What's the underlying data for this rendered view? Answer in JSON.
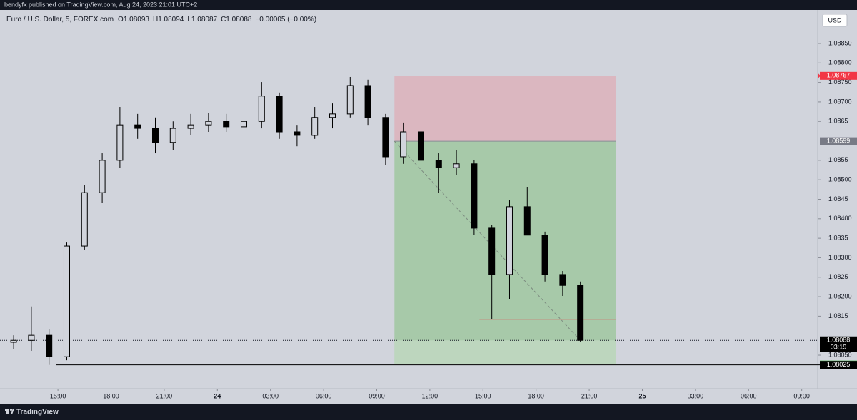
{
  "header": "bendyfx published on TradingView.com, Aug 24, 2023 21:01 UTC+2",
  "footer": "TradingView",
  "chart_data": {
    "type": "candlestick",
    "symbol": "Euro / U.S. Dollar, 5, FOREX.com",
    "ohlc_legend": [
      "O1.08093",
      "H1.08094",
      "L1.08087",
      "C1.08088",
      "−0.00005 (−0.00%)"
    ],
    "currency": "USD",
    "x": [
      12.5,
      13.5,
      14.5,
      15.5,
      16.5,
      17.5,
      18.5,
      19.5,
      20.5,
      21.5,
      22.5,
      23.5,
      24.5,
      25.5,
      26.5,
      27.5,
      28.5,
      29.5,
      30.5,
      31.5,
      32.5,
      33.5,
      34.5,
      35.5,
      36.5,
      37.5,
      38.5,
      39.5,
      40.5,
      41.5,
      42.5,
      43.5,
      44.5
    ],
    "open": [
      1.08083,
      1.08088,
      1.08101,
      1.08046,
      1.0833,
      1.08467,
      1.0855,
      1.08641,
      1.08632,
      1.08596,
      1.08632,
      1.08641,
      1.0865,
      1.08636,
      1.0865,
      1.08715,
      1.08623,
      1.08614,
      1.0866,
      1.08669,
      1.08742,
      1.0866,
      1.08559,
      1.08623,
      1.0855,
      1.08531,
      1.08541,
      1.08376,
      1.08257,
      1.08431,
      1.08358,
      1.08257,
      1.08229
    ],
    "high": [
      1.08101,
      1.08175,
      1.08116,
      1.08339,
      1.08486,
      1.08568,
      1.08687,
      1.08669,
      1.0866,
      1.0865,
      1.08669,
      1.08672,
      1.08669,
      1.08669,
      1.08751,
      1.08724,
      1.08641,
      1.08687,
      1.08696,
      1.08764,
      1.08757,
      1.08669,
      1.08647,
      1.08632,
      1.08568,
      1.08577,
      1.0855,
      1.08385,
      1.08449,
      1.08482,
      1.08367,
      1.08266,
      1.08239
    ],
    "low": [
      1.08065,
      1.08061,
      1.08025,
      1.08037,
      1.08321,
      1.0844,
      1.08531,
      1.08605,
      1.08568,
      1.08577,
      1.08614,
      1.08623,
      1.08623,
      1.08623,
      1.08632,
      1.08605,
      1.08586,
      1.08605,
      1.08632,
      1.0866,
      1.08641,
      1.08537,
      1.08541,
      1.08541,
      1.08467,
      1.08513,
      1.08358,
      1.08142,
      1.08193,
      1.08367,
      1.08239,
      1.08202,
      1.08083
    ],
    "close": [
      1.08088,
      1.08101,
      1.08046,
      1.0833,
      1.08467,
      1.0855,
      1.08641,
      1.08632,
      1.08596,
      1.08632,
      1.08641,
      1.0865,
      1.08636,
      1.0865,
      1.08715,
      1.08623,
      1.08614,
      1.0866,
      1.08669,
      1.08742,
      1.0866,
      1.08559,
      1.08623,
      1.0855,
      1.08531,
      1.08541,
      1.08376,
      1.08257,
      1.08431,
      1.08358,
      1.08257,
      1.08229,
      1.08088
    ],
    "up_color": "#d1d4dc",
    "down_color": "#000000",
    "last_price": 1.08088,
    "countdown": "03:19",
    "position": {
      "entry": 1.08599,
      "stop": 1.08767,
      "target": 1.08026,
      "start": 34,
      "end": 46.5,
      "stop_color": "#dbb7c0",
      "target_color": "#a7c9a9"
    },
    "low_line": {
      "value": 1.08142,
      "start": 38.8
    },
    "support_ray": {
      "value": 1.08025,
      "start": 14.9
    },
    "xlim": [
      11.73,
      57.9
    ],
    "ylim": [
      1.07964,
      1.08936
    ],
    "xticks": [
      {
        "value": 15,
        "label": "15:00"
      },
      {
        "value": 18,
        "label": "18:00"
      },
      {
        "value": 21,
        "label": "21:00"
      },
      24,
      {
        "value": 27,
        "label": "03:00"
      },
      {
        "value": 30,
        "label": "06:00"
      },
      {
        "value": 33,
        "label": "09:00"
      },
      {
        "value": 36,
        "label": "12:00"
      },
      {
        "value": 39,
        "label": "15:00"
      },
      {
        "value": 42,
        "label": "18:00"
      },
      {
        "value": 45,
        "label": "21:00"
      },
      {
        "value": 48,
        "label": "25"
      },
      {
        "value": 51,
        "label": "03:00"
      },
      {
        "value": 54,
        "label": "06:00"
      },
      {
        "value": 57,
        "label": "09:00"
      }
    ],
    "yticks": [
      {
        "value": 1.0885,
        "label": "1.08850"
      },
      {
        "value": 1.088,
        "label": "1.08800"
      },
      {
        "value": 1.0875,
        "label": "1.08750"
      },
      {
        "value": 1.087,
        "label": "1.08700"
      },
      1.0865,
      1.0855,
      {
        "value": 1.085,
        "label": "1.08500"
      },
      1.0845,
      {
        "value": 1.084,
        "label": "1.08400"
      },
      1.0835,
      {
        "value": 1.083,
        "label": "1.08300"
      },
      1.0825,
      {
        "value": 1.082,
        "label": "1.08200"
      },
      1.0815,
      {
        "value": 1.0805,
        "label": "1.08050"
      }
    ]
  }
}
